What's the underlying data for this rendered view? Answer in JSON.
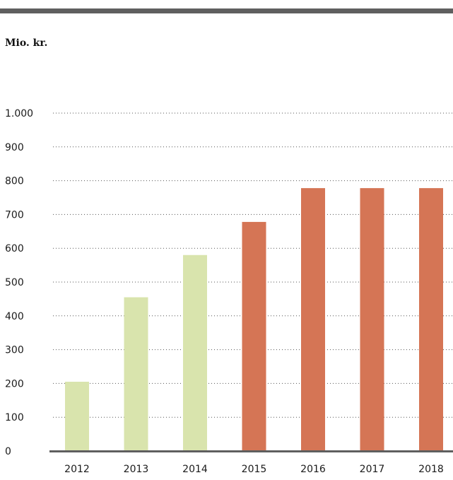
{
  "header": {
    "rule_color": "#5f5f5f"
  },
  "chart_data": {
    "type": "bar",
    "title": "",
    "xlabel": "",
    "ylabel": "Mio. kr.",
    "ylim": [
      0,
      1000
    ],
    "grid": true,
    "yticks": [
      {
        "value": 0,
        "label": "0"
      },
      {
        "value": 100,
        "label": "100"
      },
      {
        "value": 200,
        "label": "200"
      },
      {
        "value": 300,
        "label": "300"
      },
      {
        "value": 400,
        "label": "400"
      },
      {
        "value": 500,
        "label": "500"
      },
      {
        "value": 600,
        "label": "600"
      },
      {
        "value": 700,
        "label": "700"
      },
      {
        "value": 800,
        "label": "800"
      },
      {
        "value": 900,
        "label": "900"
      },
      {
        "value": 1000,
        "label": "1.000"
      }
    ],
    "categories": [
      "2012",
      "2013",
      "2014",
      "2015",
      "2016",
      "2017",
      "2018"
    ],
    "values": [
      205,
      455,
      580,
      678,
      778,
      778,
      778
    ],
    "bar_colors": [
      "#d9e4ad",
      "#d9e4ad",
      "#d9e4ad",
      "#d57555",
      "#d57555",
      "#d57555",
      "#d57555"
    ],
    "axis_color": "#5f5f5f",
    "grid_color": "#555555"
  }
}
